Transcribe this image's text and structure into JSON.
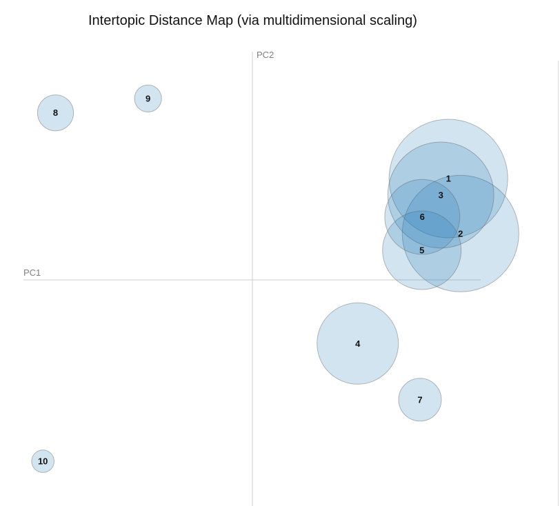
{
  "title": "Intertopic Distance Map (via multidimensional scaling)",
  "colors": {
    "circle_fill": "#1f77b4",
    "axis": "#cccccc",
    "axis_label": "#7f7f7f",
    "text": "#111111"
  },
  "chart_data": {
    "type": "scatter",
    "title": "Intertopic Distance Map (via multidimensional scaling)",
    "xlabel": "PC1",
    "ylabel": "PC2",
    "xlim": [
      -1,
      1
    ],
    "ylim": [
      -1,
      1
    ],
    "grid": false,
    "legend": "none",
    "size_encoding": "marginal topic distribution (circle area)",
    "points": [
      {
        "label": "1",
        "x": 0.856,
        "y": 0.444,
        "size": 1.0
      },
      {
        "label": "2",
        "x": 0.909,
        "y": 0.203,
        "size": 0.965
      },
      {
        "label": "3",
        "x": 0.823,
        "y": 0.372,
        "size": 0.8
      },
      {
        "label": "4",
        "x": 0.46,
        "y": -0.279,
        "size": 0.47
      },
      {
        "label": "5",
        "x": 0.74,
        "y": 0.13,
        "size": 0.44
      },
      {
        "label": "6",
        "x": 0.742,
        "y": 0.276,
        "size": 0.4
      },
      {
        "label": "7",
        "x": 0.732,
        "y": -0.525,
        "size": 0.13
      },
      {
        "label": "8",
        "x": -0.86,
        "y": 0.732,
        "size": 0.092
      },
      {
        "label": "9",
        "x": -0.456,
        "y": 0.795,
        "size": 0.052
      },
      {
        "label": "10",
        "x": -0.915,
        "y": -0.795,
        "size": 0.036
      }
    ]
  }
}
